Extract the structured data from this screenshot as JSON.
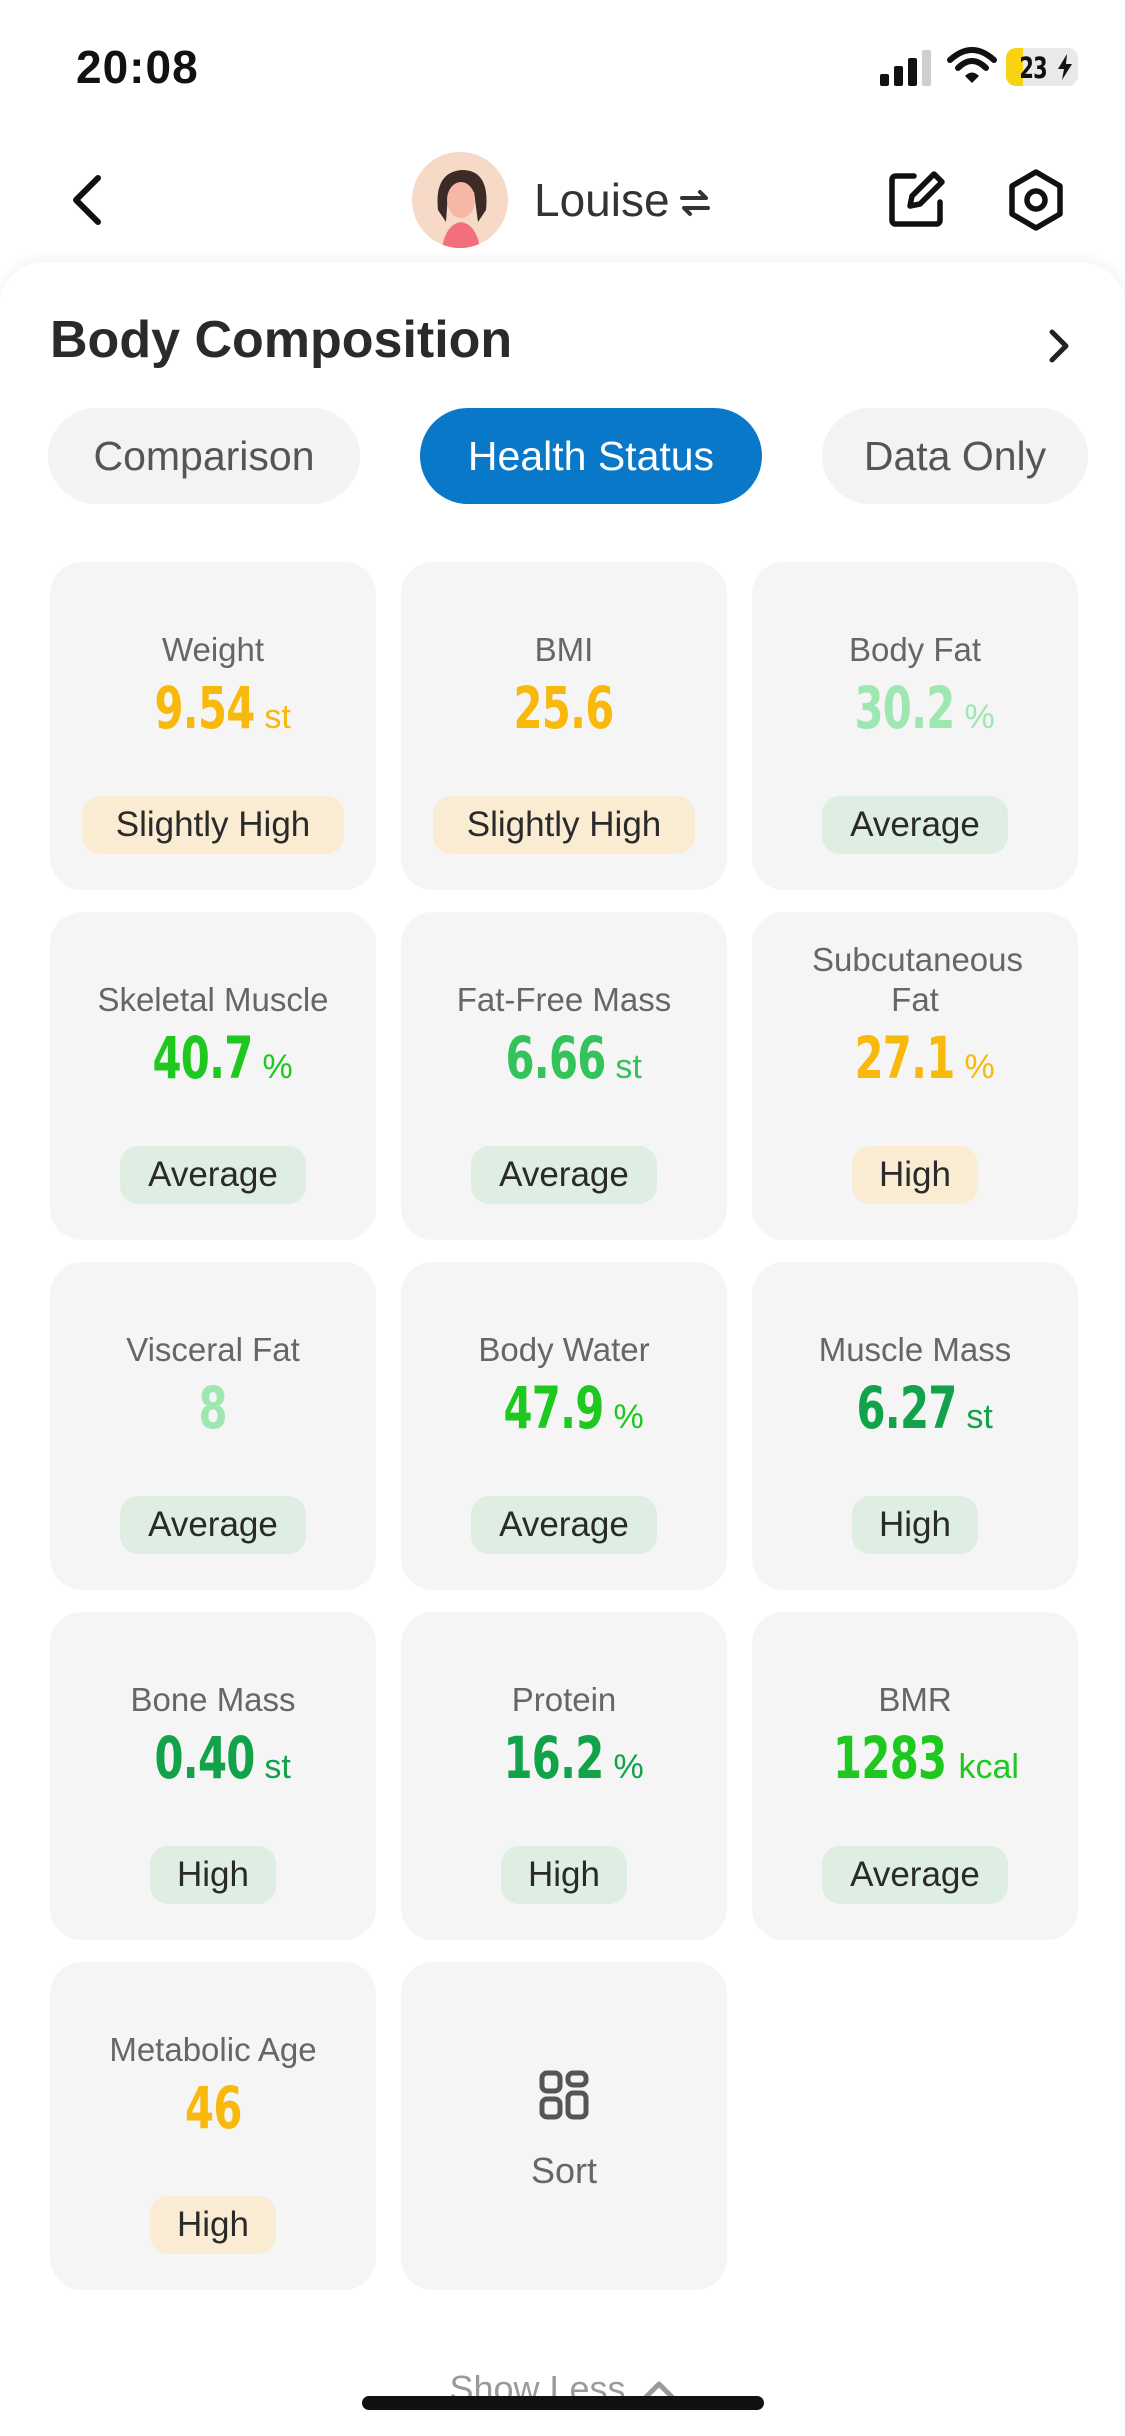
{
  "status": {
    "time": "20:08",
    "battery": "23",
    "battery_level": 0.23,
    "icons": [
      "cellular-signal-icon",
      "wifi-icon",
      "battery-charging-icon"
    ]
  },
  "header": {
    "profile_name": "Louise",
    "icons": [
      "back-icon",
      "swap-icon",
      "edit-icon",
      "settings-icon"
    ]
  },
  "section": {
    "title": "Body Composition",
    "tabs": [
      {
        "label": "Comparison",
        "active": false
      },
      {
        "label": "Health Status",
        "active": true
      },
      {
        "label": "Data Only",
        "active": false
      }
    ]
  },
  "colors": {
    "accent": "#0a78c9",
    "yellow": "#f8b90c",
    "light_green": "#9ee7b0",
    "bright_green": "#1ec81e",
    "mid_green": "#34c25a",
    "dark_green": "#11a24a",
    "badge_average_bg": "#deeee3",
    "badge_high_bg": "#f9ecd2"
  },
  "metrics": [
    {
      "label": "Weight",
      "value": "9.54",
      "unit": "st",
      "status": "Slightly High",
      "color": "#f8b90c"
    },
    {
      "label": "BMI",
      "value": "25.6",
      "unit": "",
      "status": "Slightly High",
      "color": "#f8b90c"
    },
    {
      "label": "Body Fat",
      "value": "30.2",
      "unit": "%",
      "status": "Average",
      "color": "#9ee7b0"
    },
    {
      "label": "Skeletal Muscle",
      "value": "40.7",
      "unit": "%",
      "status": "Average",
      "color": "#1ec81e"
    },
    {
      "label": "Fat-Free Mass",
      "value": "6.66",
      "unit": "st",
      "status": "Average",
      "color": "#34c25a"
    },
    {
      "label": "Subcutaneous Fat",
      "value": "27.1",
      "unit": "%",
      "status": "High",
      "color": "#f8b90c"
    },
    {
      "label": "Visceral Fat",
      "value": "8",
      "unit": "",
      "status": "Average",
      "color": "#9ee7b0"
    },
    {
      "label": "Body Water",
      "value": "47.9",
      "unit": "%",
      "status": "Average",
      "color": "#1ec81e"
    },
    {
      "label": "Muscle Mass",
      "value": "6.27",
      "unit": "st",
      "status": "High",
      "color": "#11a24a"
    },
    {
      "label": "Bone Mass",
      "value": "0.40",
      "unit": "st",
      "status": "High",
      "color": "#11a24a"
    },
    {
      "label": "Protein",
      "value": "16.2",
      "unit": "%",
      "status": "High",
      "color": "#11a24a"
    },
    {
      "label": "BMR",
      "value": "1283",
      "unit": "kcal",
      "status": "Average",
      "color": "#1ec81e"
    },
    {
      "label": "Metabolic Age",
      "value": "46",
      "unit": "",
      "status": "High",
      "color": "#f8b90c"
    }
  ],
  "sort": {
    "label": "Sort",
    "icon": "sort-icon"
  },
  "footer": {
    "show_less": "Show Less"
  }
}
